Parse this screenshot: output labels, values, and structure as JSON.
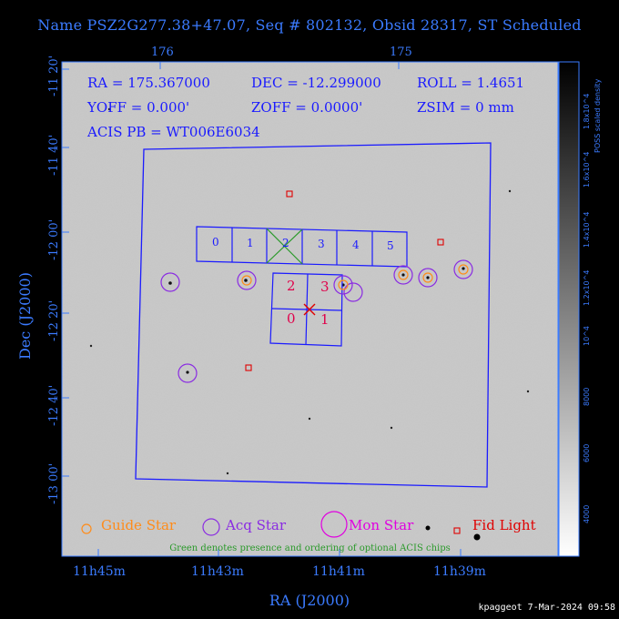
{
  "title": "Name PSZ2G277.38+47.07, Seq # 802132, Obsid 28317, ST Scheduled",
  "top_axis": {
    "ticks": [
      "176",
      "175"
    ]
  },
  "ra_axis": {
    "ticks": [
      "11h45m",
      "11h43m",
      "11h41m",
      "11h39m"
    ],
    "label": "RA (J2000)"
  },
  "dec_axis": {
    "ticks": [
      "-11 20'",
      "-11 40'",
      "-12 00'",
      "-12 20'",
      "-12 40'",
      "-13 00'"
    ],
    "label": "Dec (J2000)"
  },
  "info": {
    "ra": "RA = 175.367000",
    "dec": "DEC = -12.299000",
    "roll": "ROLL = 1.4651",
    "yoff": "YOFF = 0.000'",
    "zoff": "ZOFF = 0.0000'",
    "zsim": "ZSIM = 0 mm",
    "acis_pb": "ACIS PB = WT006E6034"
  },
  "chips": {
    "top_row": [
      "0",
      "1",
      "2",
      "3",
      "4",
      "5"
    ],
    "center": [
      "2",
      "3",
      "0",
      "1"
    ]
  },
  "colorbar": {
    "label": "POSS scaled density",
    "ticks": [
      "4000",
      "6000",
      "8000",
      "10^4",
      "1.2x10^4",
      "1.4x10^4",
      "1.6x10^4",
      "1.8x10^4"
    ]
  },
  "legend": {
    "guide": "Guide Star",
    "acq": "Acq Star",
    "mon": "Mon Star",
    "fid": "Fid Light",
    "note": "Green denotes presence and ordering of optional ACIS chips"
  },
  "footer": "kpaggeot  7-Mar-2024 09:58",
  "colors": {
    "axis_text": "#3b7bff",
    "field_outline": "#1a1aff",
    "guide": "#ff8c1a",
    "acq": "#8a2be2",
    "mon": "#e000e0",
    "fid": "#e00000",
    "optional_chip": "#2a9a2a",
    "chip_label_center": "#e0004a"
  }
}
